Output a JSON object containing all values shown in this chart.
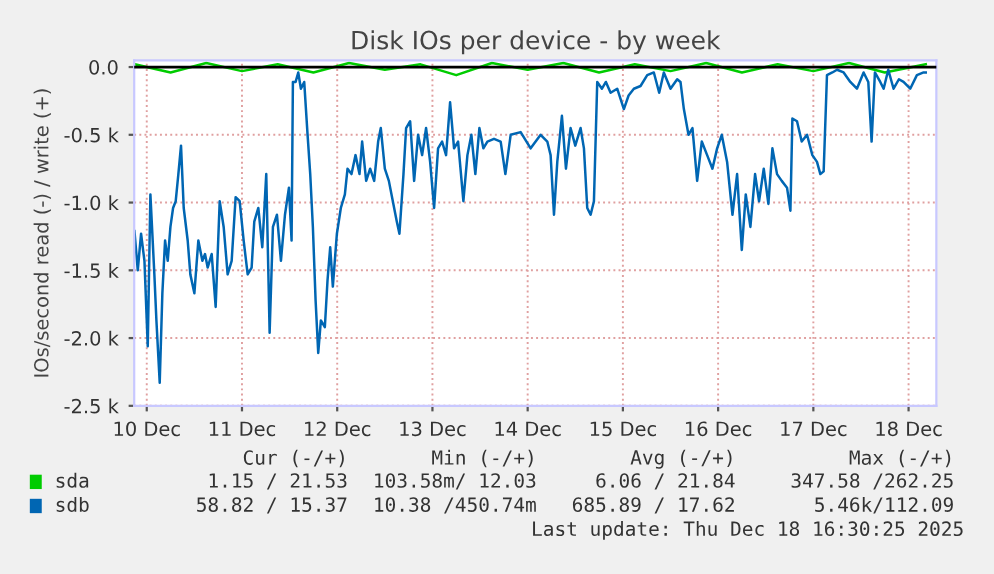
{
  "chart_data": {
    "type": "line",
    "title": "Disk IOs per device - by week",
    "ylabel": "IOs/second read (-) / write (+)",
    "xlim": [
      "2025-12-10T08:50",
      "2025-12-18T19:00"
    ],
    "ylim": [
      -2500,
      50
    ],
    "xticks": [
      {
        "value": "2025-12-10T12:00",
        "label": "10 Dec"
      },
      {
        "value": "2025-12-11T12:00",
        "label": "11 Dec"
      },
      {
        "value": "2025-12-12T12:00",
        "label": "12 Dec"
      },
      {
        "value": "2025-12-13T12:00",
        "label": "13 Dec"
      },
      {
        "value": "2025-12-14T12:00",
        "label": "14 Dec"
      },
      {
        "value": "2025-12-15T12:00",
        "label": "15 Dec"
      },
      {
        "value": "2025-12-16T12:00",
        "label": "16 Dec"
      },
      {
        "value": "2025-12-17T12:00",
        "label": "17 Dec"
      },
      {
        "value": "2025-12-18T12:00",
        "label": "18 Dec"
      }
    ],
    "yticks": [
      {
        "value": -2500,
        "label": "-2.5 k"
      },
      {
        "value": -2000,
        "label": "-2.0 k"
      },
      {
        "value": -1500,
        "label": "-1.5 k"
      },
      {
        "value": -1000,
        "label": "-1.0 k"
      },
      {
        "value": -500,
        "label": "-0.5 k"
      },
      {
        "value": 0,
        "label": "0.0"
      }
    ],
    "grid": true,
    "legend": "bottom",
    "line_style": "solid",
    "ref_lines": [
      {
        "axis": "y",
        "value": 0,
        "color": "#000000"
      }
    ],
    "series": [
      {
        "name": "sda",
        "color": "#00cc00",
        "x": [
          "2025-12-10T09:00",
          "2025-12-10T18:00",
          "2025-12-11T03:00",
          "2025-12-11T12:00",
          "2025-12-11T21:00",
          "2025-12-12T06:00",
          "2025-12-12T15:00",
          "2025-12-13T00:00",
          "2025-12-13T09:00",
          "2025-12-13T18:00",
          "2025-12-14T03:00",
          "2025-12-14T12:00",
          "2025-12-14T21:00",
          "2025-12-15T06:00",
          "2025-12-15T15:00",
          "2025-12-16T00:00",
          "2025-12-16T09:00",
          "2025-12-16T18:00",
          "2025-12-17T03:00",
          "2025-12-17T12:00",
          "2025-12-17T21:00",
          "2025-12-18T06:00",
          "2025-12-18T16:20"
        ],
        "values": [
          20,
          -40,
          30,
          -30,
          20,
          -40,
          30,
          -20,
          20,
          -60,
          30,
          -20,
          30,
          -40,
          20,
          -30,
          30,
          -40,
          20,
          -30,
          30,
          -40,
          20
        ]
      },
      {
        "name": "sdb",
        "color": "#0066b3",
        "x": [
          "2025-12-10T08:54",
          "2025-12-10T09:44",
          "2025-12-10T10:34",
          "2025-12-10T11:25",
          "2025-12-10T12:15",
          "2025-12-10T12:55",
          "2025-12-10T13:55",
          "2025-12-10T14:26",
          "2025-12-10T15:16",
          "2025-12-10T15:56",
          "2025-12-10T16:37",
          "2025-12-10T17:17",
          "2025-12-10T17:58",
          "2025-12-10T18:38",
          "2025-12-10T19:18",
          "2025-12-10T19:58",
          "2025-12-10T20:38",
          "2025-12-10T21:19",
          "2025-12-10T22:19",
          "2025-12-10T22:59",
          "2025-12-11T00:00",
          "2025-12-11T01:00",
          "2025-12-11T02:01",
          "2025-12-11T02:41",
          "2025-12-11T03:21",
          "2025-12-11T04:22",
          "2025-12-11T05:22",
          "2025-12-11T06:23",
          "2025-12-11T07:23",
          "2025-12-11T08:23",
          "2025-12-11T09:24",
          "2025-12-11T10:24",
          "2025-12-11T11:25",
          "2025-12-11T12:25",
          "2025-12-11T13:26",
          "2025-12-11T14:26",
          "2025-12-11T15:06",
          "2025-12-11T16:07",
          "2025-12-11T17:07",
          "2025-12-11T18:07",
          "2025-12-11T18:58",
          "2025-12-11T19:48",
          "2025-12-11T20:49",
          "2025-12-11T21:49",
          "2025-12-11T22:50",
          "2025-12-11T23:50",
          "2025-12-12T00:30",
          "2025-12-12T00:50",
          "2025-12-12T01:31",
          "2025-12-12T02:11",
          "2025-12-12T02:51",
          "2025-12-12T03:41",
          "2025-12-12T04:32",
          "2025-12-12T05:12",
          "2025-12-12T05:52",
          "2025-12-12T06:33",
          "2025-12-12T07:13",
          "2025-12-12T07:53",
          "2025-12-12T08:53",
          "2025-12-12T09:34",
          "2025-12-12T10:14",
          "2025-12-12T10:54",
          "2025-12-12T11:55",
          "2025-12-12T12:55",
          "2025-12-12T13:56",
          "2025-12-12T14:36",
          "2025-12-12T15:36",
          "2025-12-12T16:37",
          "2025-12-12T17:37",
          "2025-12-12T18:17",
          "2025-12-12T19:18",
          "2025-12-12T20:18",
          "2025-12-12T21:19",
          "2025-12-12T22:19",
          "2025-12-12T22:59",
          "2025-12-13T00:00",
          "2025-12-13T01:01",
          "2025-12-13T02:01",
          "2025-12-13T03:01",
          "2025-12-13T03:41",
          "2025-12-13T04:42",
          "2025-12-13T05:22",
          "2025-12-13T06:23",
          "2025-12-13T07:23",
          "2025-12-13T08:23",
          "2025-12-13T09:24",
          "2025-12-13T10:24",
          "2025-12-13T11:25",
          "2025-12-13T12:25",
          "2025-12-13T13:25",
          "2025-12-13T14:26",
          "2025-12-13T15:26",
          "2025-12-13T16:27",
          "2025-12-13T17:27",
          "2025-12-13T18:28",
          "2025-12-13T19:48",
          "2025-12-13T20:49",
          "2025-12-13T21:49",
          "2025-12-13T22:49",
          "2025-12-13T23:50",
          "2025-12-14T00:50",
          "2025-12-14T01:51",
          "2025-12-14T03:31",
          "2025-12-14T05:12",
          "2025-12-14T06:23",
          "2025-12-14T07:43",
          "2025-12-14T10:14",
          "2025-12-14T12:45",
          "2025-12-14T15:16",
          "2025-12-14T16:57",
          "2025-12-14T17:47",
          "2025-12-14T18:38",
          "2025-12-14T19:28",
          "2025-12-14T20:38",
          "2025-12-14T21:39",
          "2025-12-14T22:49",
          "2025-12-15T00:00",
          "2025-12-15T01:20",
          "2025-12-15T02:11",
          "2025-12-15T03:01",
          "2025-12-15T03:52",
          "2025-12-15T04:42",
          "2025-12-15T05:32",
          "2025-12-15T06:43",
          "2025-12-15T07:43",
          "2025-12-15T08:54",
          "2025-12-15T10:34",
          "2025-12-15T12:15",
          "2025-12-15T13:26",
          "2025-12-15T14:46",
          "2025-12-15T16:27",
          "2025-12-15T18:08",
          "2025-12-15T19:48",
          "2025-12-15T21:09",
          "2025-12-15T22:19",
          "2025-12-16T00:00",
          "2025-12-16T01:41",
          "2025-12-16T02:31",
          "2025-12-16T03:22",
          "2025-12-16T04:32",
          "2025-12-16T05:32",
          "2025-12-16T06:43",
          "2025-12-16T07:53",
          "2025-12-16T09:14",
          "2025-12-16T10:34",
          "2025-12-16T11:45",
          "2025-12-16T12:55",
          "2025-12-16T14:16",
          "2025-12-16T15:37",
          "2025-12-16T16:47",
          "2025-12-16T17:58",
          "2025-12-16T18:58",
          "2025-12-16T20:08",
          "2025-12-16T21:19",
          "2025-12-16T22:19",
          "2025-12-16T23:30",
          "2025-12-17T00:40",
          "2025-12-17T01:41",
          "2025-12-17T02:51",
          "2025-12-17T04:02",
          "2025-12-17T05:22",
          "2025-12-17T06:13",
          "2025-12-17T06:43",
          "2025-12-17T07:53",
          "2025-12-17T09:04",
          "2025-12-17T10:25",
          "2025-12-17T11:45",
          "2025-12-17T12:55",
          "2025-12-17T13:46",
          "2025-12-17T14:36",
          "2025-12-17T15:26",
          "2025-12-17T16:47",
          "2025-12-17T17:58",
          "2025-12-17T19:38",
          "2025-12-17T21:19",
          "2025-12-17T22:59",
          "2025-12-18T00:40",
          "2025-12-18T01:51",
          "2025-12-18T02:41",
          "2025-12-18T03:31",
          "2025-12-18T04:52",
          "2025-12-18T05:43",
          "2025-12-18T06:53",
          "2025-12-18T08:13",
          "2025-12-18T09:34",
          "2025-12-18T10:44",
          "2025-12-18T12:25",
          "2025-12-18T14:06",
          "2025-12-18T15:47",
          "2025-12-18T16:20"
        ],
        "values": [
          -1210,
          -1500,
          -1230,
          -1430,
          -2060,
          -940,
          -1530,
          -1870,
          -2330,
          -1670,
          -1280,
          -1430,
          -1180,
          -1040,
          -990,
          -790,
          -580,
          -1040,
          -1280,
          -1530,
          -1670,
          -1280,
          -1430,
          -1380,
          -1480,
          -1380,
          -1770,
          -990,
          -1180,
          -1530,
          -1430,
          -960,
          -990,
          -1280,
          -1530,
          -1480,
          -1140,
          -1040,
          -1330,
          -790,
          -1960,
          -1180,
          -1090,
          -1430,
          -1090,
          -890,
          -1280,
          -110,
          -110,
          -40,
          -160,
          -110,
          -500,
          -790,
          -1180,
          -1720,
          -2110,
          -1870,
          -1920,
          -1570,
          -1330,
          -1620,
          -1230,
          -1040,
          -940,
          -750,
          -790,
          -650,
          -790,
          -550,
          -840,
          -750,
          -840,
          -550,
          -450,
          -750,
          -840,
          -990,
          -1140,
          -1230,
          -790,
          -450,
          -400,
          -840,
          -500,
          -650,
          -450,
          -700,
          -1040,
          -600,
          -550,
          -650,
          -260,
          -600,
          -550,
          -990,
          -650,
          -500,
          -790,
          -450,
          -600,
          -550,
          -530,
          -550,
          -790,
          -500,
          -480,
          -600,
          -500,
          -550,
          -650,
          -1090,
          -700,
          -360,
          -750,
          -450,
          -580,
          -450,
          -600,
          -1040,
          -1090,
          -990,
          -110,
          -160,
          -110,
          -190,
          -160,
          -310,
          -210,
          -160,
          -140,
          -60,
          -40,
          -190,
          -40,
          -160,
          -90,
          -110,
          -310,
          -500,
          -450,
          -840,
          -550,
          -650,
          -750,
          -600,
          -500,
          -700,
          -1090,
          -790,
          -1350,
          -940,
          -1180,
          -790,
          -990,
          -750,
          -1010,
          -600,
          -790,
          -840,
          -890,
          -1060,
          -380,
          -400,
          -550,
          -500,
          -650,
          -700,
          -790,
          -770,
          -60,
          -40,
          -20,
          -40,
          -110,
          -160,
          -40,
          -110,
          -550,
          -40,
          -110,
          -160,
          -20,
          -160,
          -90,
          -110,
          -160,
          -60,
          -40,
          -40
        ]
      }
    ],
    "annotations": [
      "Cur (-/+)",
      "Min (-/+)",
      "Avg (-/+)",
      "Max (-/+)",
      "1.15 / 21.53",
      "103.58m/ 12.03",
      "6.06 / 21.84",
      "347.58 /262.25",
      "58.82 / 15.37",
      "10.38 /450.74m",
      "685.89 / 17.62",
      "5.46k/112.09",
      "Last update: Thu Dec 18 16:30:25 2025"
    ]
  }
}
